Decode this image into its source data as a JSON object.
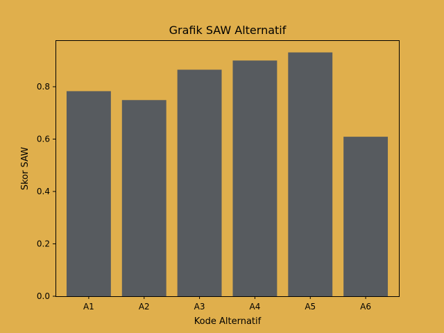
{
  "chart_data": {
    "type": "bar",
    "title": "Grafik SAW Alternatif",
    "xlabel": "Kode Alternatif",
    "ylabel": "Skor SAW",
    "categories": [
      "A1",
      "A2",
      "A3",
      "A4",
      "A5",
      "A6"
    ],
    "values": [
      0.783,
      0.749,
      0.865,
      0.9,
      0.931,
      0.609
    ],
    "ylim": [
      0,
      0.9775
    ],
    "yticks": [
      "0.0",
      "0.2",
      "0.4",
      "0.6",
      "0.8"
    ],
    "grid": false,
    "bar_color": "#575b5f",
    "background_color": "#e0af4c"
  }
}
